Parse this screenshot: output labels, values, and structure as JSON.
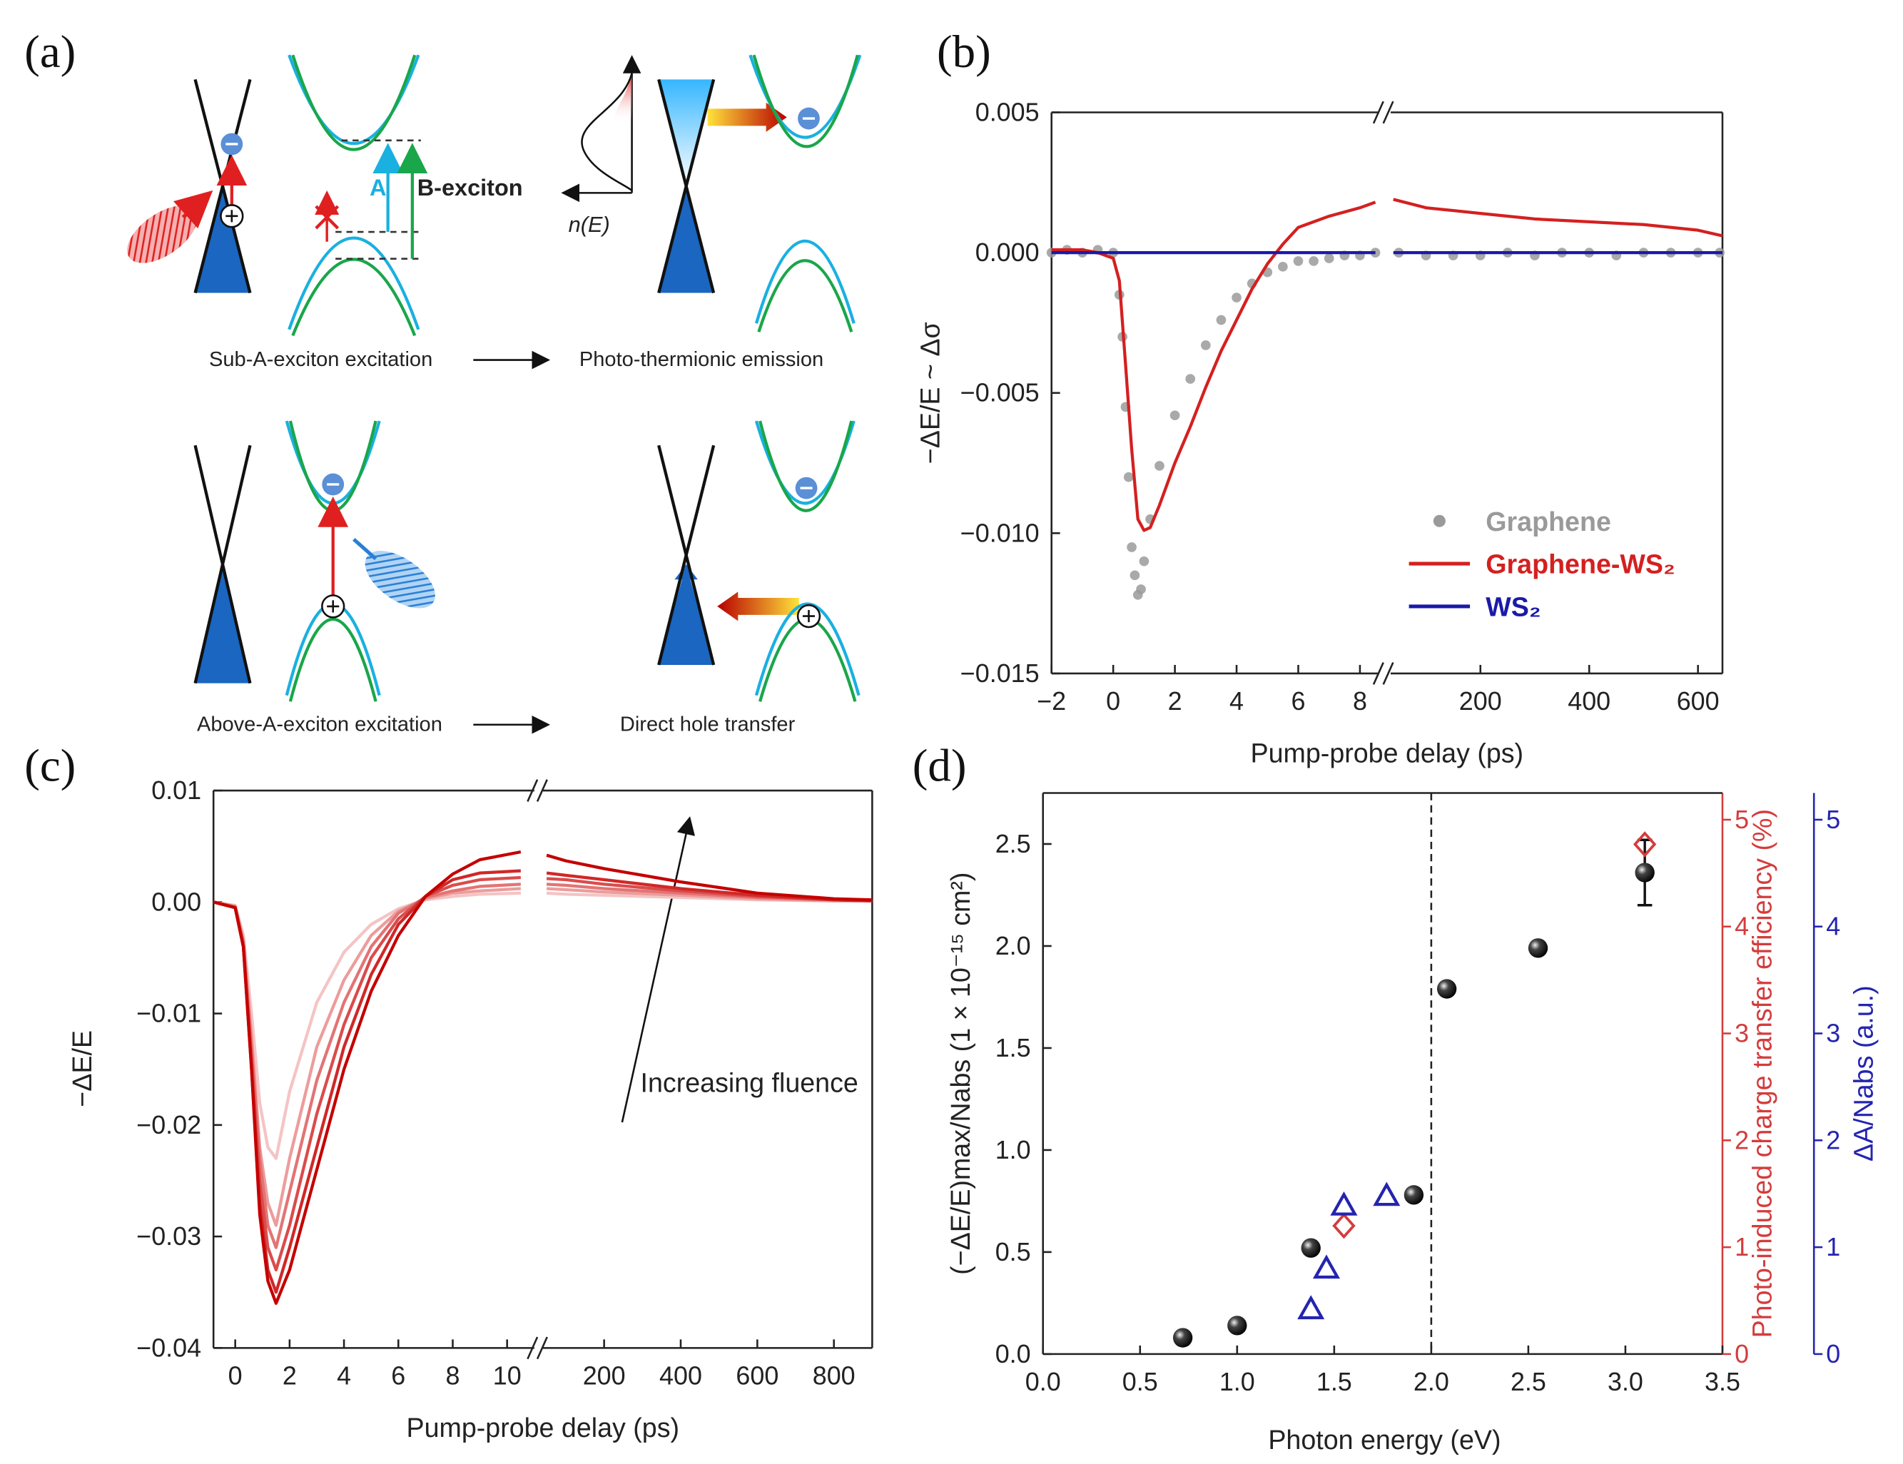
{
  "panel_labels": [
    "(a)",
    "(b)",
    "(c)",
    "(d)"
  ],
  "diagram": {
    "a_label": "A",
    "b_label": "B-exciton",
    "ne_label": "n(E)",
    "captions": [
      "Sub-A-exciton excitation",
      "Photo-thermionic emission",
      "Above-A-exciton excitation",
      "Direct hole transfer"
    ]
  },
  "chart_data": [
    {
      "type": "line",
      "xlabel": "Pump-probe delay (ps)",
      "ylabel": "−ΔE/E ~ Δσ",
      "x_segments": [
        {
          "xlim": [
            -2,
            8.6
          ],
          "xticks": [
            {
              "value": -2,
              "label": "−2"
            },
            0,
            2,
            4,
            6,
            8
          ]
        },
        {
          "xlim": [
            35,
            645
          ],
          "xticks": [
            200,
            400,
            600
          ]
        }
      ],
      "ylim": [
        -0.015,
        0.005
      ],
      "yticks": [
        {
          "value": -0.015,
          "label": "−0.015"
        },
        {
          "value": -0.01,
          "label": "−0.010"
        },
        {
          "value": -0.005,
          "label": "−0.005"
        },
        {
          "value": 0,
          "label": "0.000"
        },
        0.005
      ],
      "legend": "lower right",
      "series": [
        {
          "name": "Graphene",
          "color": "#9a9a9a",
          "style": "dot",
          "x": [
            -2,
            -1.5,
            -1,
            -0.5,
            0,
            0.2,
            0.3,
            0.4,
            0.5,
            0.6,
            0.7,
            0.8,
            0.9,
            1.0,
            1.2,
            1.5,
            2,
            2.5,
            3,
            3.5,
            4,
            4.5,
            5,
            5.5,
            6,
            6.5,
            7,
            7.5,
            8,
            8.5,
            50,
            100,
            150,
            200,
            250,
            300,
            350,
            400,
            450,
            500,
            550,
            600,
            640
          ],
          "values": [
            0,
            0.0001,
            0,
            0.0001,
            0,
            -0.0015,
            -0.003,
            -0.0055,
            -0.008,
            -0.0105,
            -0.0115,
            -0.0122,
            -0.012,
            -0.011,
            -0.0095,
            -0.0076,
            -0.0058,
            -0.0045,
            -0.0033,
            -0.0024,
            -0.0016,
            -0.0011,
            -0.0007,
            -0.0005,
            -0.0003,
            -0.0003,
            -0.0002,
            -0.0001,
            -0.0001,
            0,
            0,
            -0.0001,
            -0.0001,
            -0.0001,
            0,
            -0.0001,
            0,
            0,
            -0.0001,
            0,
            0,
            0,
            0
          ]
        },
        {
          "name": "Graphene-WS₂",
          "color": "#d42020",
          "style": "line",
          "x": [
            -2,
            -1,
            -0.5,
            0,
            0.2,
            0.4,
            0.6,
            0.8,
            1.0,
            1.2,
            1.5,
            2,
            2.5,
            3,
            3.5,
            4,
            4.5,
            5,
            5.5,
            6,
            7,
            8,
            8.5,
            40,
            100,
            200,
            300,
            400,
            500,
            600,
            645
          ],
          "values": [
            0.0001,
            0.0001,
            0,
            -0.0002,
            -0.001,
            -0.004,
            -0.007,
            -0.0095,
            -0.0099,
            -0.0098,
            -0.009,
            -0.0075,
            -0.0062,
            -0.0048,
            -0.0035,
            -0.0024,
            -0.0013,
            -0.0004,
            0.0003,
            0.0009,
            0.0013,
            0.0016,
            0.0018,
            0.0019,
            0.0016,
            0.0014,
            0.0012,
            0.0011,
            0.001,
            0.0008,
            0.0006
          ]
        },
        {
          "name": "WS₂",
          "color": "#1a1aa8",
          "style": "line",
          "x": [
            -2,
            8.5,
            40,
            645
          ],
          "values": [
            0,
            0,
            0,
            0
          ]
        }
      ]
    },
    {
      "type": "line",
      "xlabel": "Pump-probe delay (ps)",
      "ylabel": "−ΔE/E",
      "annotation": "Increasing fluence",
      "x_segments": [
        {
          "xlim": [
            -0.8,
            11
          ],
          "xticks": [
            0,
            2,
            4,
            6,
            8,
            10
          ]
        },
        {
          "xlim": [
            40,
            900
          ],
          "xticks": [
            200,
            400,
            600,
            800
          ]
        }
      ],
      "ylim": [
        -0.04,
        0.01
      ],
      "yticks": [
        {
          "value": -0.04,
          "label": "−0.04"
        },
        {
          "value": -0.03,
          "label": "−0.03"
        },
        {
          "value": -0.02,
          "label": "−0.02"
        },
        {
          "value": -0.01,
          "label": "−0.01"
        },
        {
          "value": 0,
          "label": "0.00"
        },
        0.01
      ],
      "x": [
        -0.8,
        0,
        0.3,
        0.6,
        0.9,
        1.2,
        1.5,
        2,
        3,
        4,
        5,
        6,
        7,
        8,
        9,
        10.5,
        50,
        100,
        200,
        400,
        600,
        800,
        900
      ],
      "series": [
        {
          "color": "#f4c4c4",
          "style": "line",
          "values": [
            0,
            -0.0003,
            -0.003,
            -0.01,
            -0.018,
            -0.022,
            -0.023,
            -0.017,
            -0.009,
            -0.0045,
            -0.002,
            -0.0006,
            0.0002,
            0.0005,
            0.0007,
            0.0008,
            0.0008,
            0.0007,
            0.0006,
            0.0004,
            0.0002,
            0.0001,
            0.0001
          ]
        },
        {
          "color": "#ec9c9c",
          "style": "line",
          "values": [
            0,
            -0.0004,
            -0.0035,
            -0.012,
            -0.022,
            -0.027,
            -0.029,
            -0.023,
            -0.013,
            -0.007,
            -0.003,
            -0.0008,
            0.0003,
            0.0008,
            0.001,
            0.0012,
            0.0012,
            0.0011,
            0.0009,
            0.0006,
            0.0003,
            0.0001,
            0.0001
          ]
        },
        {
          "color": "#e37474",
          "style": "line",
          "values": [
            0,
            -0.0004,
            -0.0035,
            -0.013,
            -0.023,
            -0.029,
            -0.031,
            -0.026,
            -0.016,
            -0.009,
            -0.004,
            -0.001,
            0.0004,
            0.001,
            0.0014,
            0.0016,
            0.0016,
            0.0015,
            0.0012,
            0.0008,
            0.0004,
            0.0002,
            0.0001
          ]
        },
        {
          "color": "#da4c4c",
          "style": "line",
          "values": [
            0,
            -0.0005,
            -0.004,
            -0.014,
            -0.025,
            -0.031,
            -0.033,
            -0.029,
            -0.019,
            -0.011,
            -0.005,
            -0.0015,
            0.0005,
            0.0015,
            0.002,
            0.0022,
            0.0021,
            0.002,
            0.0016,
            0.001,
            0.0005,
            0.0002,
            0.0001
          ]
        },
        {
          "color": "#d02828",
          "style": "line",
          "values": [
            0,
            -0.0005,
            -0.004,
            -0.015,
            -0.027,
            -0.033,
            -0.035,
            -0.031,
            -0.022,
            -0.013,
            -0.0065,
            -0.002,
            0.0005,
            0.002,
            0.0026,
            0.0028,
            0.0026,
            0.0024,
            0.002,
            0.0012,
            0.0006,
            0.0002,
            0.0001
          ]
        },
        {
          "color": "#c40000",
          "style": "line",
          "values": [
            0,
            -0.0005,
            -0.004,
            -0.015,
            -0.028,
            -0.034,
            -0.036,
            -0.033,
            -0.024,
            -0.015,
            -0.008,
            -0.003,
            0.0005,
            0.0025,
            0.0038,
            0.0045,
            0.0042,
            0.0037,
            0.003,
            0.0018,
            0.0008,
            0.0003,
            0.0002
          ]
        }
      ]
    },
    {
      "type": "scatter",
      "xlabel": "Photon energy (eV)",
      "ylabel": "(−ΔE/E)max/Nabs (1 × 10⁻¹⁵ cm²)",
      "y2label": "Photo-induced charge transfer efficiency (%)",
      "y3label": "ΔA/Nabs (a.u.)",
      "xlim": [
        0,
        3.5
      ],
      "xticks": [
        {
          "value": 0,
          "label": "0.0"
        },
        0.5,
        {
          "value": 1,
          "label": "1.0"
        },
        1.5,
        {
          "value": 2,
          "label": "2.0"
        },
        2.5,
        {
          "value": 3,
          "label": "3.0"
        },
        3.5
      ],
      "ylim": [
        0,
        2.75
      ],
      "yticks": [
        {
          "value": 0,
          "label": "0.0"
        },
        0.5,
        {
          "value": 1,
          "label": "1.0"
        },
        1.5,
        {
          "value": 2,
          "label": "2.0"
        },
        2.5
      ],
      "y2lim": [
        0,
        5.25
      ],
      "y2ticks": [
        0,
        1,
        2,
        3,
        4,
        5
      ],
      "y2color": "#d43c3c",
      "y3lim": [
        0,
        5.25
      ],
      "y3ticks": [
        0,
        1,
        2,
        3,
        4,
        5
      ],
      "y3color": "#2424b0",
      "vline_x": 2.0,
      "series": [
        {
          "color": "#111111",
          "style": "ball",
          "axis": "y",
          "x": [
            0.72,
            1.0,
            1.38,
            1.91,
            2.08,
            2.55,
            3.1
          ],
          "values": [
            0.08,
            0.14,
            0.52,
            0.78,
            1.79,
            1.99,
            2.36
          ],
          "errors": [
            null,
            null,
            null,
            null,
            null,
            null,
            0.16
          ]
        },
        {
          "color": "#d43c3c",
          "style": "diamond",
          "axis": "y2",
          "x": [
            1.55,
            3.1
          ],
          "values": [
            1.2,
            4.77
          ]
        },
        {
          "color": "#2424b0",
          "style": "triangle",
          "axis": "y3",
          "x": [
            1.38,
            1.46,
            1.55,
            1.77
          ],
          "values": [
            0.42,
            0.8,
            1.39,
            1.48
          ]
        }
      ]
    }
  ]
}
